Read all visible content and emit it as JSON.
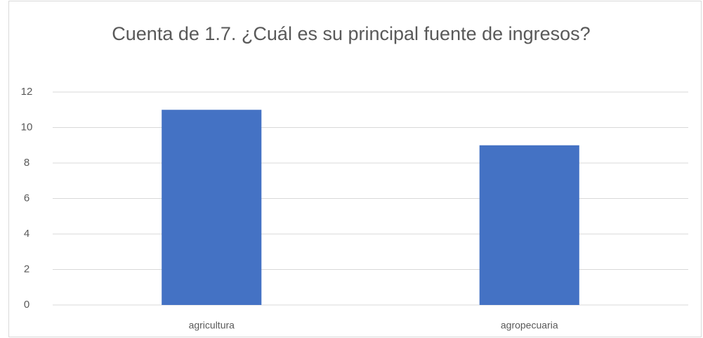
{
  "chart_data": {
    "type": "bar",
    "title": "Cuenta de 1.7. ¿Cuál es su principal fuente de ingresos?",
    "categories": [
      "agricultura",
      "agropecuaria"
    ],
    "values": [
      11,
      9
    ],
    "color": "#4472c4",
    "ylim": [
      0,
      12
    ],
    "yticks": [
      0,
      2,
      4,
      6,
      8,
      10,
      12
    ],
    "grid": true
  }
}
